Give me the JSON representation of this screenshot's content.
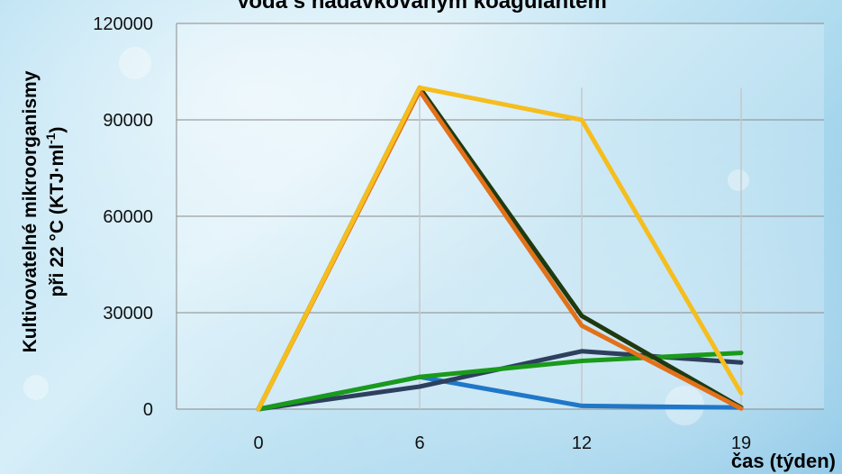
{
  "chart_data": {
    "type": "line",
    "title": "Voda s nadávkovaným koagulantem",
    "xlabel": "čas (týden)",
    "ylabel_line1": "Kultivovatelné mikroorganismy",
    "ylabel_line2": "při 22 °C (KTJ·ml",
    "ylabel_sup": "-1",
    "ylabel_close": ")",
    "categories": [
      "0",
      "6",
      "12",
      "19"
    ],
    "x": [
      0,
      6,
      12,
      19
    ],
    "ylim": [
      0,
      120000
    ],
    "yticks": [
      0,
      30000,
      60000,
      90000,
      120000
    ],
    "ytick_labels": [
      "0",
      "30000",
      "60000",
      "90000",
      "120000"
    ],
    "grid": true,
    "series": [
      {
        "color": "#1F77C8",
        "values": [
          0,
          10000,
          1000,
          500
        ]
      },
      {
        "color": "#2E3F5E",
        "values": [
          0,
          7000,
          18000,
          14500
        ]
      },
      {
        "color": "#1A9A1A",
        "values": [
          0,
          10000,
          15000,
          17500
        ]
      },
      {
        "color": "#1F3A10",
        "values": [
          0,
          100000,
          29000,
          500
        ]
      },
      {
        "color": "#E2711A",
        "values": [
          0,
          99000,
          26000,
          200
        ]
      },
      {
        "color": "#F5BE1E",
        "values": [
          0,
          100000,
          90000,
          5000
        ]
      }
    ]
  }
}
